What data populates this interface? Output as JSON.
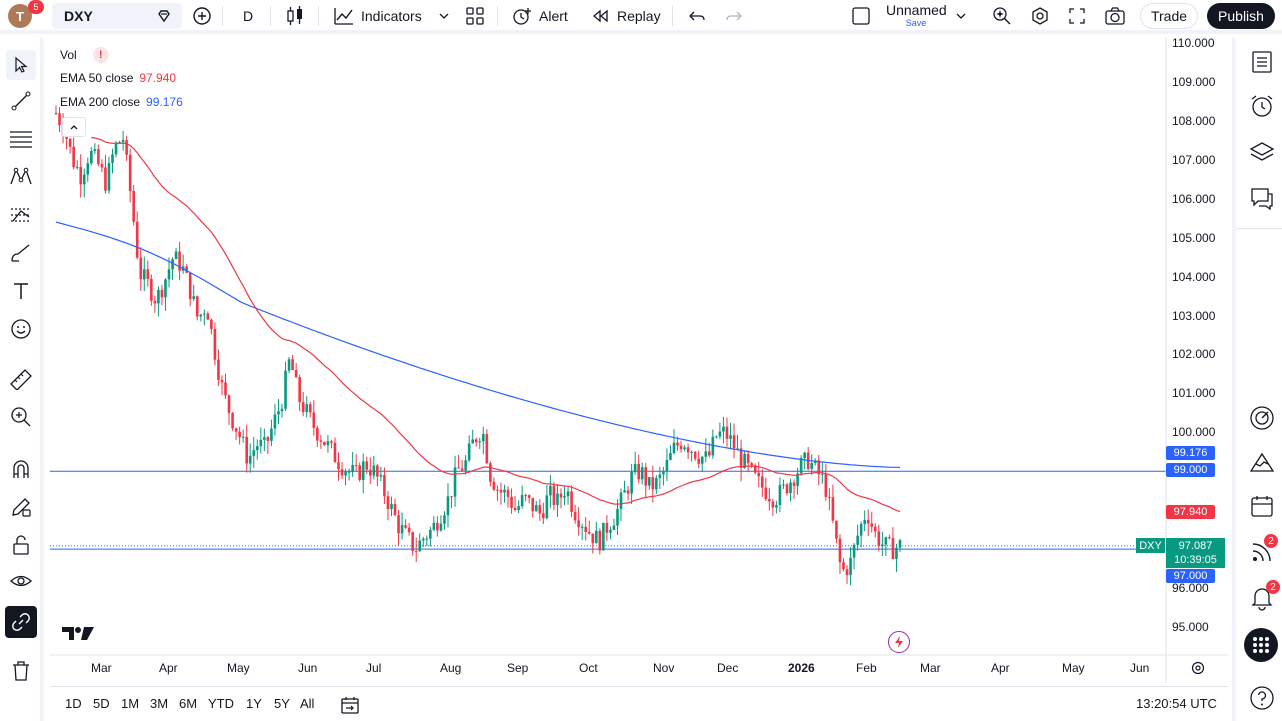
{
  "topbar": {
    "avatar_letter": "T",
    "avatar_badge": "5",
    "symbol": "DXY",
    "interval": "D",
    "indicators_label": "Indicators",
    "alert_label": "Alert",
    "replay_label": "Replay",
    "layout_name": "Unnamed",
    "layout_save": "Save",
    "trade_label": "Trade",
    "publish_label": "Publish"
  },
  "legend": {
    "vol_label": "Vol",
    "ema50_label": "EMA 50 close",
    "ema50_value": "97.940",
    "ema200_label": "EMA 200 close",
    "ema200_value": "99.176"
  },
  "price_axis": {
    "ticks": [
      "110.000",
      "109.000",
      "108.000",
      "107.000",
      "106.000",
      "105.000",
      "104.000",
      "103.000",
      "102.000",
      "101.000",
      "100.000",
      "96.000",
      "95.000"
    ]
  },
  "price_labels": {
    "ema200": "99.176",
    "line_99": "99.000",
    "ema50": "97.940",
    "symbol_tag": "DXY",
    "last_price": "97.087",
    "countdown": "10:39:05",
    "line_97": "97.000"
  },
  "time_axis": {
    "ticks": [
      "Mar",
      "Apr",
      "May",
      "Jun",
      "Jul",
      "Aug",
      "Sep",
      "Oct",
      "Nov",
      "Dec",
      "2026",
      "Feb",
      "Mar",
      "Apr",
      "May",
      "Jun"
    ]
  },
  "bottombar": {
    "ranges": [
      "1D",
      "5D",
      "1M",
      "3M",
      "6M",
      "YTD",
      "1Y",
      "5Y",
      "All"
    ],
    "clock": "13:20:54 UTC"
  },
  "right_badges": {
    "feed": "2",
    "notifications": "2"
  },
  "colors": {
    "up": "#089981",
    "down": "#f23645",
    "ema50": "#f23645",
    "ema200": "#2962ff",
    "hline": "#2962ff"
  },
  "chart_data": {
    "type": "candlestick",
    "symbol": "DXY",
    "ylim": [
      94.6,
      110.2
    ],
    "series": [
      {
        "name": "EMA 50 close",
        "last": 97.94
      },
      {
        "name": "EMA 200 close",
        "last": 99.176
      }
    ],
    "close_approx": [
      108.2,
      107.8,
      107.0,
      106.6,
      107.2,
      106.9,
      106.4,
      107.3,
      107.6,
      106.0,
      104.1,
      103.8,
      103.4,
      103.9,
      104.5,
      104.3,
      103.7,
      102.9,
      103.3,
      102.1,
      101.0,
      100.4,
      99.9,
      99.3,
      99.7,
      99.6,
      100.2,
      100.8,
      101.9,
      100.9,
      100.5,
      100.1,
      99.8,
      99.5,
      99.2,
      99.0,
      98.9,
      99.2,
      99.0,
      98.6,
      98.1,
      97.6,
      97.3,
      97.0,
      97.3,
      97.5,
      97.9,
      98.3,
      99.0,
      99.2,
      99.8,
      100.1,
      98.9,
      98.5,
      98.4,
      98.0,
      98.3,
      98.1,
      97.9,
      98.4,
      98.2,
      98.6,
      98.0,
      97.7,
      97.4,
      97.2,
      97.6,
      97.9,
      98.4,
      98.9,
      99.0,
      98.6,
      98.7,
      99.1,
      99.6,
      99.8,
      99.6,
      99.4,
      99.3,
      99.9,
      100.0,
      99.7,
      99.3,
      99.0,
      98.7,
      98.5,
      98.3,
      98.5,
      98.8,
      99.1,
      99.3,
      99.0,
      98.7,
      97.6,
      96.4,
      96.6,
      97.4,
      98.0,
      97.4,
      97.1,
      97.0,
      97.09
    ]
  }
}
